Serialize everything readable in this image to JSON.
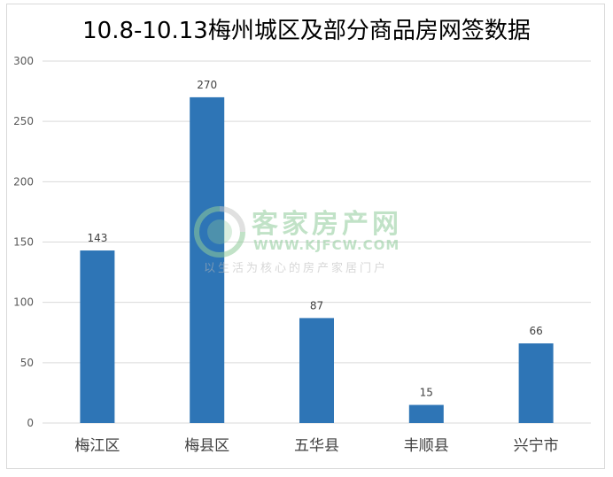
{
  "chart_data": {
    "type": "bar",
    "title": "10.8-10.13梅州城区及部分商品房网签数据",
    "categories": [
      "梅江区",
      "梅县区",
      "五华县",
      "丰顺县",
      "兴宁市"
    ],
    "values": [
      143,
      270,
      87,
      15,
      66
    ],
    "ylim": [
      0,
      300
    ],
    "yticks": [
      0,
      50,
      100,
      150,
      200,
      250,
      300
    ],
    "grid": true,
    "bar_color": "#2e75b6"
  },
  "watermark": {
    "name": "客家房产网",
    "url": "WWW.KJFCW.COM",
    "slogan": "以生活为核心的房产家居门户"
  }
}
